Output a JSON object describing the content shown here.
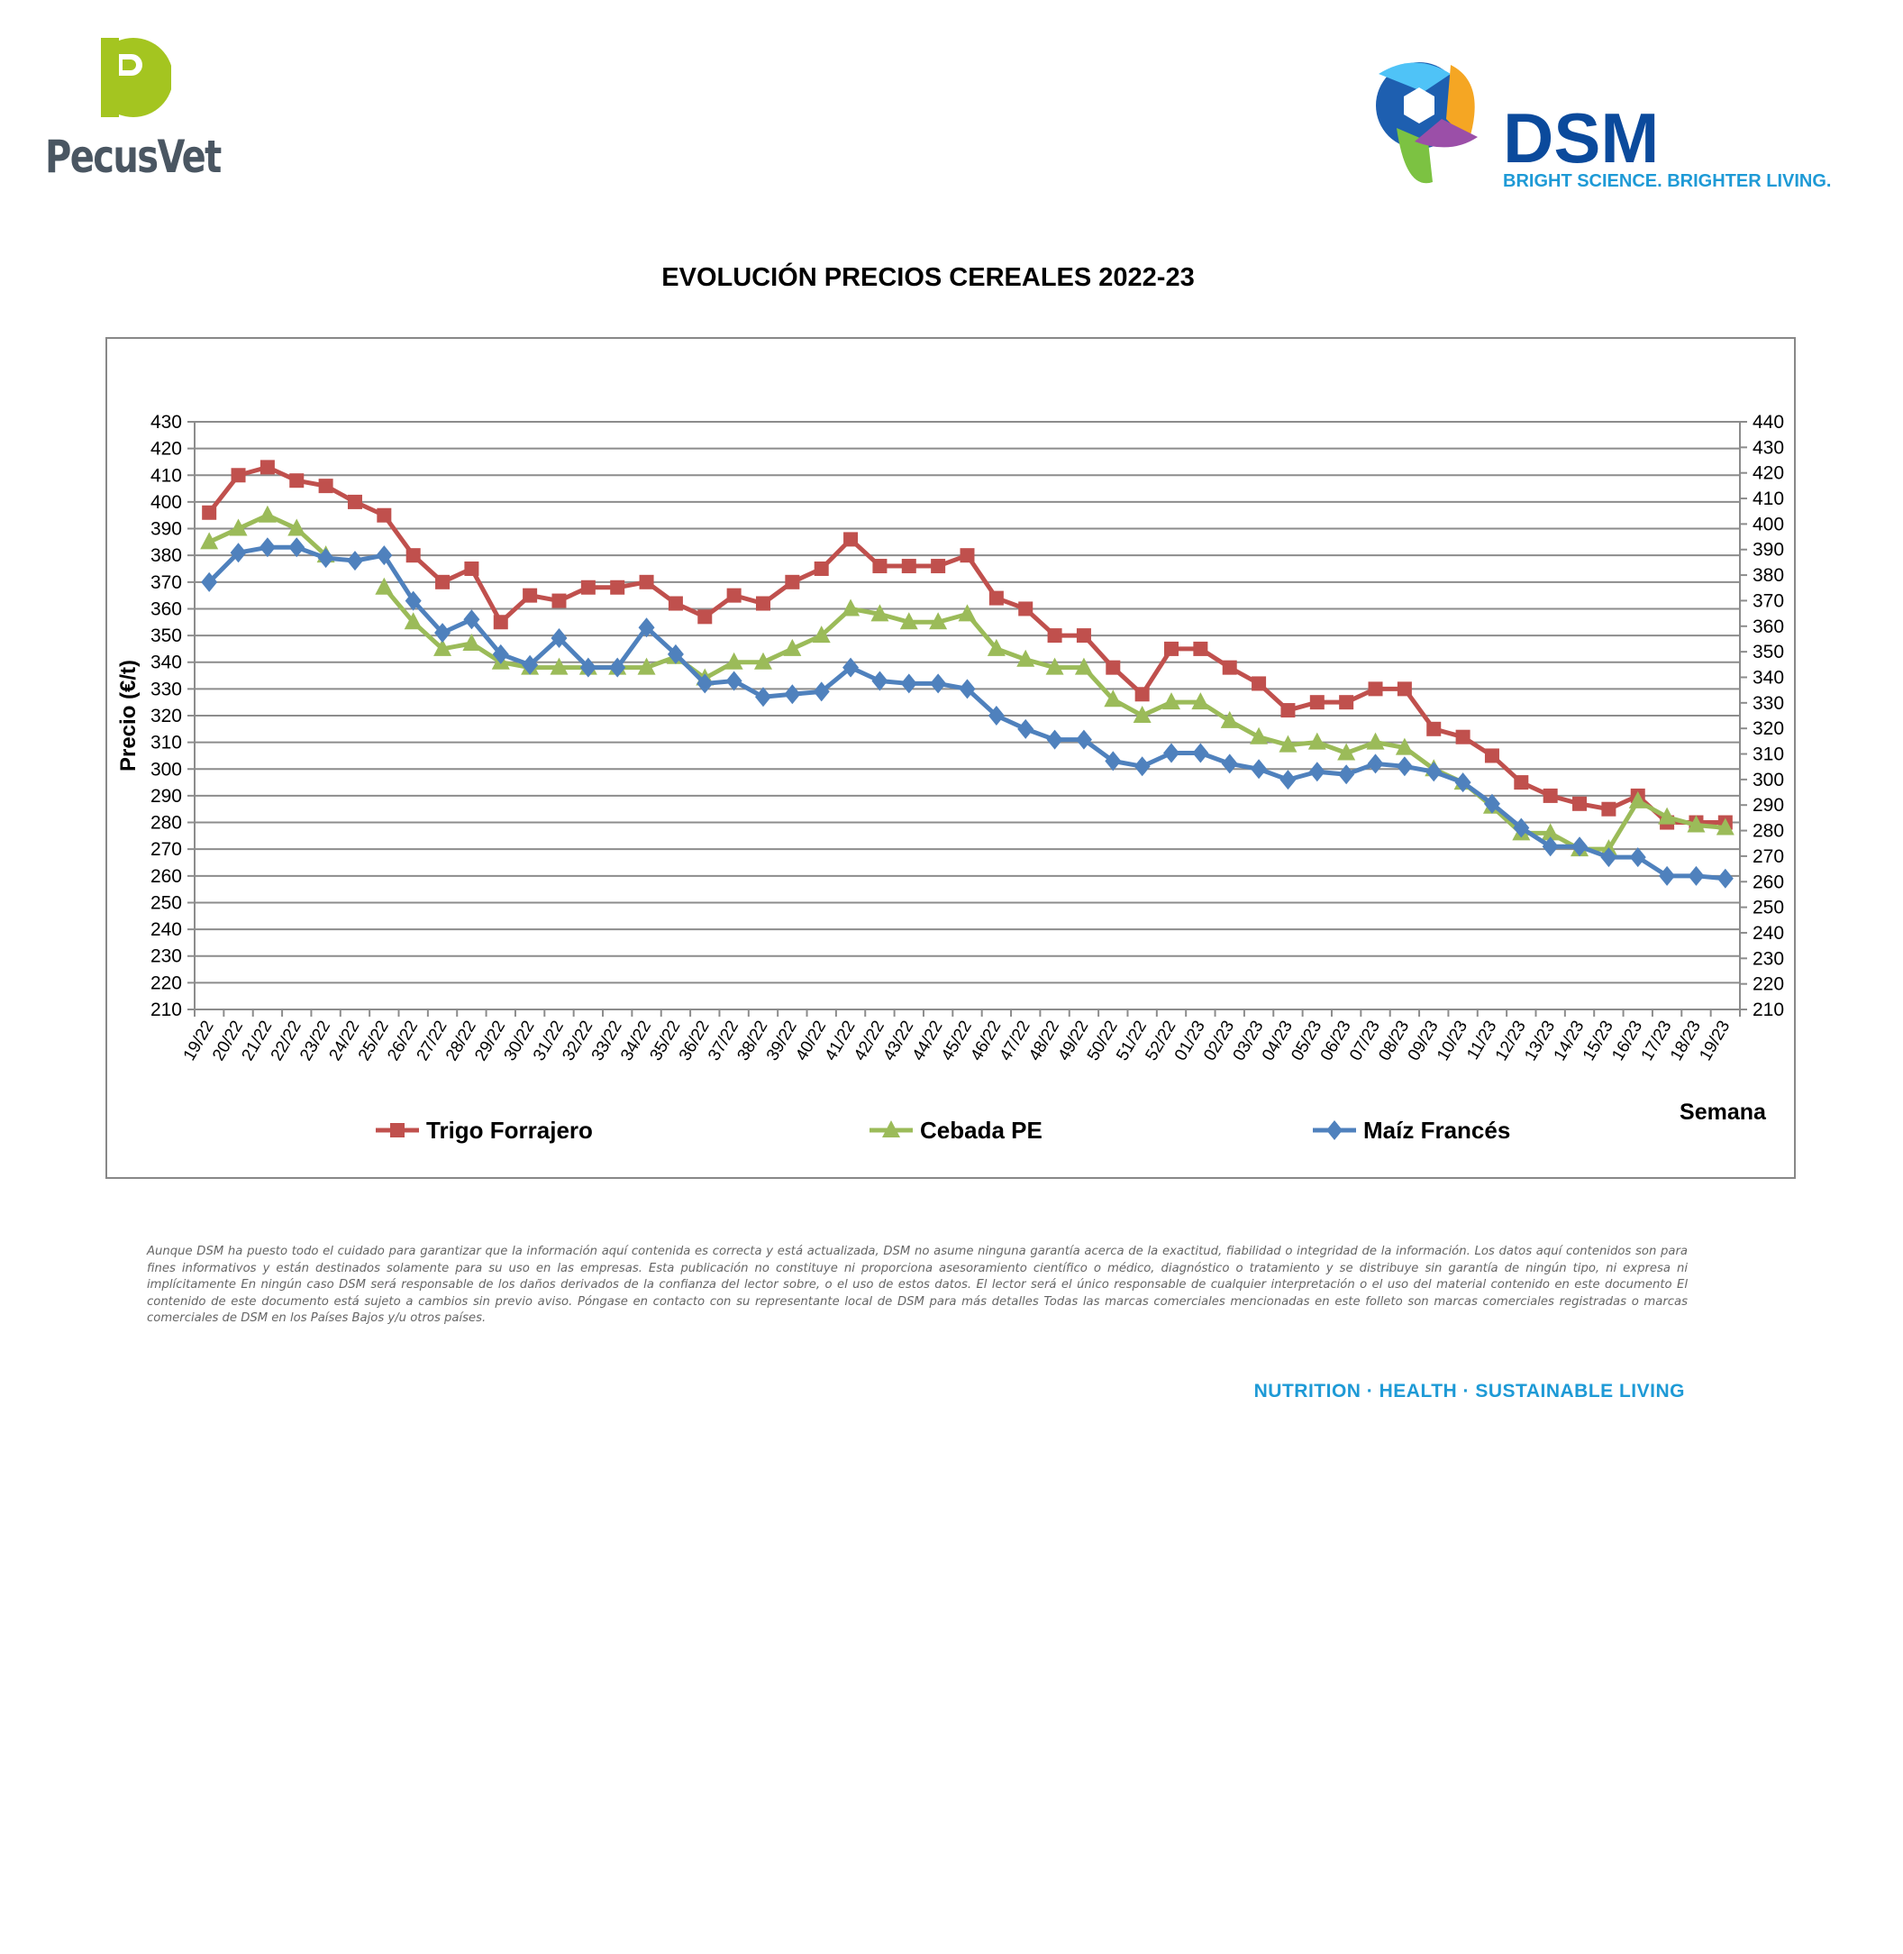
{
  "header": {
    "left_logo_text": "PecusVet",
    "right_logo_text": "DSM",
    "right_logo_tagline": "BRIGHT SCIENCE. BRIGHTER LIVING."
  },
  "colors": {
    "trigo": "#c0504d",
    "cebada": "#9bbb59",
    "maiz": "#4f81bd",
    "grid": "#8c8c8c"
  },
  "chart_data": {
    "type": "line",
    "title": "EVOLUCIÓN PRECIOS CEREALES 2022-23",
    "xlabel": "Semana",
    "ylabel": "Precio (€/t)",
    "ylim": [
      210,
      430
    ],
    "ylim_right": [
      210,
      440
    ],
    "yticks": [
      210,
      220,
      230,
      240,
      250,
      260,
      270,
      280,
      290,
      300,
      310,
      320,
      330,
      340,
      350,
      360,
      370,
      380,
      390,
      400,
      410,
      420,
      430
    ],
    "yticks_right": [
      210,
      220,
      230,
      240,
      250,
      260,
      270,
      280,
      290,
      300,
      310,
      320,
      330,
      340,
      350,
      360,
      370,
      380,
      390,
      400,
      410,
      420,
      430,
      440
    ],
    "grid": true,
    "legend_position": "bottom",
    "categories": [
      "19/22",
      "20/22",
      "21/22",
      "22/22",
      "23/22",
      "24/22",
      "25/22",
      "26/22",
      "27/22",
      "28/22",
      "29/22",
      "30/22",
      "31/22",
      "32/22",
      "33/22",
      "34/22",
      "35/22",
      "36/22",
      "37/22",
      "38/22",
      "39/22",
      "40/22",
      "41/22",
      "42/22",
      "43/22",
      "44/22",
      "45/22",
      "46/22",
      "47/22",
      "48/22",
      "49/22",
      "50/22",
      "51/22",
      "52/22",
      "01/23",
      "02/23",
      "03/23",
      "04/23",
      "05/23",
      "06/23",
      "07/23",
      "08/23",
      "09/23",
      "10/23",
      "11/23",
      "12/23",
      "13/23",
      "14/23",
      "15/23",
      "16/23",
      "17/23",
      "18/23",
      "19/23"
    ],
    "series": [
      {
        "name": "Trigo Forrajero",
        "marker": "square",
        "values": [
          396,
          410,
          413,
          408,
          406,
          400,
          395,
          380,
          370,
          375,
          355,
          365,
          363,
          368,
          368,
          370,
          362,
          357,
          365,
          362,
          370,
          375,
          386,
          376,
          376,
          376,
          380,
          364,
          360,
          350,
          350,
          338,
          328,
          345,
          345,
          338,
          332,
          322,
          325,
          325,
          330,
          330,
          315,
          312,
          305,
          295,
          290,
          287,
          285,
          290,
          280,
          280,
          280
        ]
      },
      {
        "name": "Cebada PE",
        "marker": "triangle",
        "values": [
          385,
          390,
          395,
          390,
          380,
          null,
          368,
          355,
          345,
          347,
          340,
          338,
          338,
          338,
          338,
          338,
          342,
          334,
          340,
          340,
          345,
          350,
          360,
          358,
          355,
          355,
          358,
          345,
          341,
          338,
          338,
          326,
          320,
          325,
          325,
          318,
          312,
          309,
          310,
          306,
          310,
          308,
          300,
          295,
          286,
          276,
          276,
          270,
          270,
          288,
          282,
          279,
          278
        ]
      },
      {
        "name": "Maíz Francés",
        "marker": "diamond",
        "values": [
          370,
          381,
          383,
          383,
          379,
          378,
          380,
          363,
          351,
          356,
          343,
          339,
          349,
          338,
          338,
          353,
          343,
          332,
          333,
          327,
          328,
          329,
          338,
          333,
          332,
          332,
          330,
          320,
          315,
          311,
          311,
          303,
          301,
          306,
          306,
          302,
          300,
          296,
          299,
          298,
          302,
          301,
          299,
          295,
          287,
          278,
          271,
          271,
          267,
          267,
          260,
          260,
          259
        ]
      }
    ]
  },
  "disclaimer": "Aunque DSM ha puesto todo el cuidado para garantizar que la información aquí contenida es correcta y está actualizada, DSM no asume ninguna garantía acerca de la exactitud, fiabilidad o integridad de la información. Los datos aquí contenidos son para fines informativos y están destinados solamente para su uso en las empresas. Esta publicación no constituye ni proporciona asesoramiento científico o médico, diagnóstico o tratamiento y se distribuye sin garantía de ningún tipo, ni expresa ni implícitamente En ningún caso DSM será responsable de los daños derivados de la confianza del lector sobre, o el uso de estos datos. El lector será el único responsable de cualquier interpretación o el uso del material contenido en este documento El contenido de este documento está sujeto a cambios sin previo aviso. Póngase en contacto con su representante local de DSM para más detalles Todas las marcas comerciales mencionadas en este folleto son marcas comerciales registradas o marcas comerciales de DSM en los Países Bajos y/u otros países.",
  "footer": "NUTRITION · HEALTH · SUSTAINABLE LIVING"
}
